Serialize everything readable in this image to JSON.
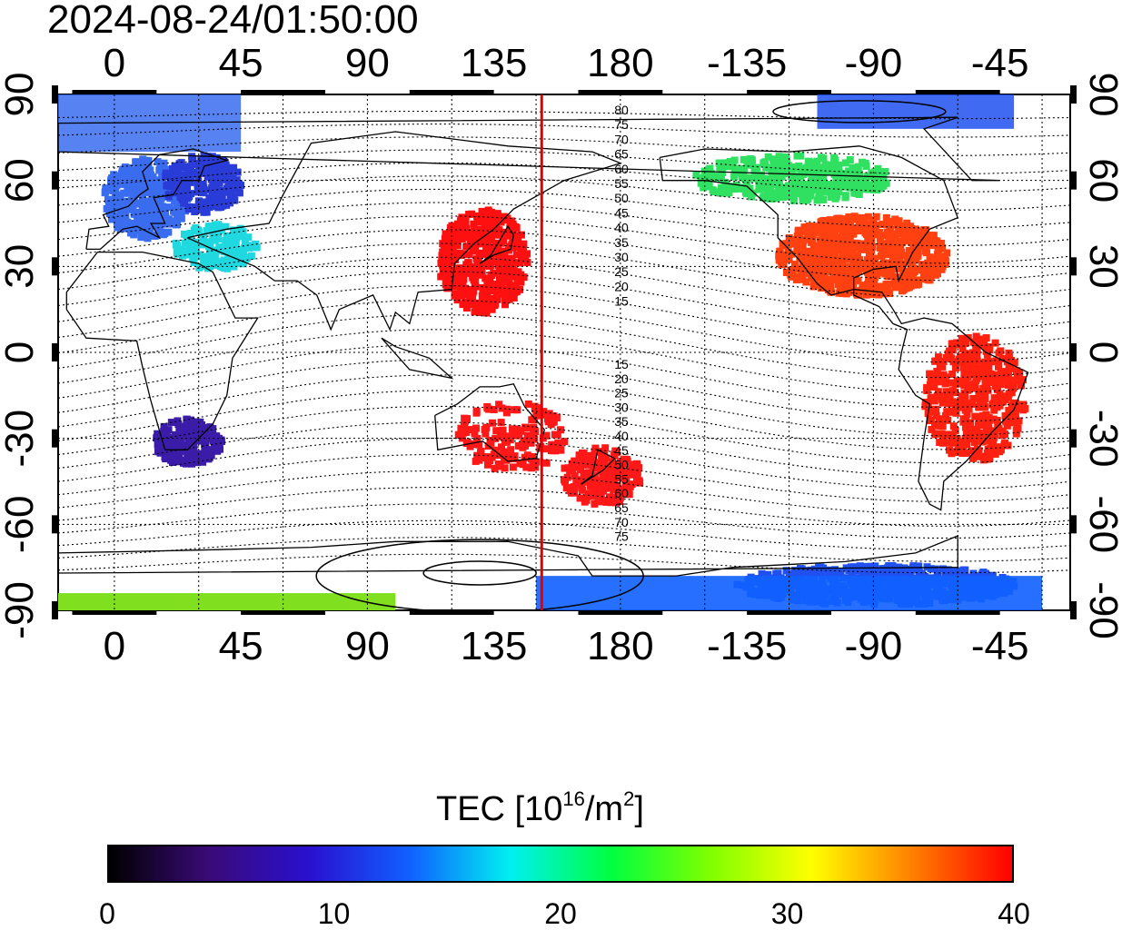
{
  "title": "2024-08-24/01:50:00",
  "map": {
    "top_lon_labels": [
      "0",
      "45",
      "90",
      "135",
      "180",
      "-135",
      "-90",
      "-45"
    ],
    "bottom_lon_labels": [
      "0",
      "45",
      "90",
      "135",
      "180",
      "-135",
      "-90",
      "-45"
    ],
    "left_lat_labels": [
      "90",
      "60",
      "30",
      "0",
      "-30",
      "-60",
      "-90"
    ],
    "right_lat_labels": [
      "90",
      "60",
      "30",
      "0",
      "-30",
      "-60",
      "-90"
    ],
    "lon_range": [
      -20,
      340
    ],
    "lat_range": [
      -90,
      90
    ],
    "terminator_lon": 152,
    "terminator_color": "#e00000",
    "contour_labels_north": [
      "80",
      "75",
      "70",
      "65",
      "60",
      "55",
      "50",
      "45",
      "40",
      "35",
      "30",
      "25",
      "20",
      "15"
    ],
    "contour_labels_south": [
      "15",
      "20",
      "25",
      "30",
      "35",
      "40",
      "45",
      "50",
      "55",
      "60",
      "65",
      "70",
      "75"
    ],
    "tec_regions": [
      {
        "name": "europe",
        "color": "#3a6cf0",
        "lon": 10,
        "lat": 55
      },
      {
        "name": "eastern-europe",
        "color": "#2a3cd8",
        "lon": 30,
        "lat": 60
      },
      {
        "name": "mediterranean",
        "color": "#20d8e0",
        "lon": 35,
        "lat": 38
      },
      {
        "name": "southern-africa",
        "color": "#3a1ca8",
        "lon": 25,
        "lat": -30
      },
      {
        "name": "east-asia",
        "color": "#ff1010",
        "lon": 130,
        "lat": 33
      },
      {
        "name": "australia",
        "color": "#ff1818",
        "lon": 140,
        "lat": -28
      },
      {
        "name": "new-zealand",
        "color": "#ff1818",
        "lon": 172,
        "lat": -42
      },
      {
        "name": "north-america",
        "color": "#ff4010",
        "lon": -95,
        "lat": 35
      },
      {
        "name": "canada",
        "color": "#30e060",
        "lon": -120,
        "lat": 62
      },
      {
        "name": "south-america",
        "color": "#ff2010",
        "lon": -55,
        "lat": -15
      },
      {
        "name": "antarctica",
        "color": "#2050f0",
        "lon": -90,
        "lat": -80
      }
    ]
  },
  "colorbar": {
    "title_prefix": "TEC  [10",
    "title_exp": "16",
    "title_mid": "/m",
    "title_exp2": "2",
    "title_suffix": "]",
    "min": 0,
    "max": 40,
    "tick_labels": [
      "0",
      "10",
      "20",
      "30",
      "40"
    ],
    "colors": [
      "#000000",
      "#3a0a78",
      "#2a10d0",
      "#1060ff",
      "#00f0f0",
      "#00ff40",
      "#80ff00",
      "#ffff00",
      "#ff8000",
      "#ff0000"
    ]
  }
}
